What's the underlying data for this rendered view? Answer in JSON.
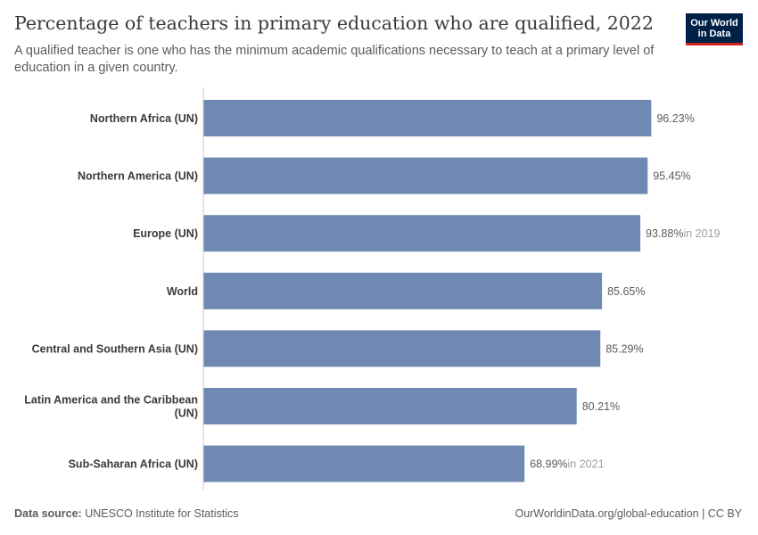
{
  "header": {
    "title": "Percentage of teachers in primary education who are qualified, 2022",
    "subtitle": "A qualified teacher is one who has the minimum academic qualifications necessary to teach at a primary level of education in a given country."
  },
  "logo": {
    "line1": "Our World",
    "line2": "in Data"
  },
  "footer": {
    "source_label": "Data source:",
    "source_text": "UNESCO Institute for Statistics",
    "link_text": "OurWorldinData.org/global-education | CC BY"
  },
  "colors": {
    "bar": "#6f89b2",
    "axis": "#cccccc",
    "label": "#3a3a3a",
    "value": "#5b5b5b",
    "note": "#a0a0a0"
  },
  "chart_data": {
    "type": "bar",
    "orientation": "horizontal",
    "xlim": [
      0,
      100
    ],
    "grid": false,
    "categories": [
      "Northern Africa (UN)",
      "Northern America (UN)",
      "Europe (UN)",
      "World",
      "Central and Southern Asia (UN)",
      "Latin America and the Caribbean (UN)",
      "Sub-Saharan Africa (UN)"
    ],
    "values": [
      96.23,
      95.45,
      93.88,
      85.65,
      85.29,
      80.21,
      68.99
    ],
    "value_labels": [
      "96.23%",
      "95.45%",
      "93.88%",
      "85.65%",
      "85.29%",
      "80.21%",
      "68.99%"
    ],
    "notes": [
      "",
      "",
      "in 2019",
      "",
      "",
      "",
      "in 2021"
    ]
  }
}
